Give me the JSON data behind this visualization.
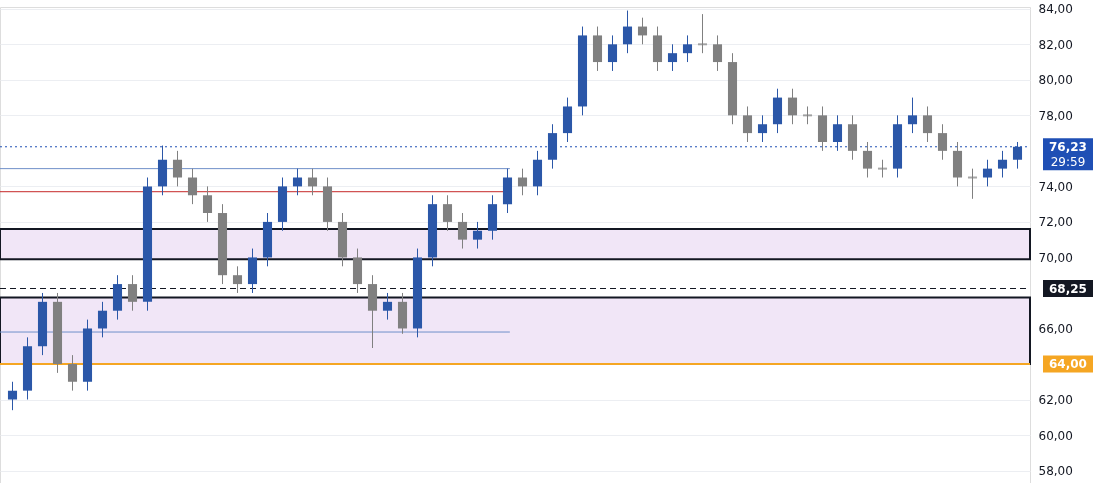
{
  "chart_data": {
    "type": "candlestick",
    "categories": [
      null,
      null,
      null,
      null,
      null,
      null,
      null,
      null,
      null,
      null,
      null,
      null,
      null,
      null,
      null,
      null,
      null,
      null,
      null,
      null,
      null,
      null,
      null,
      null,
      null,
      null,
      null,
      null,
      null,
      null,
      null,
      null,
      null,
      null,
      null,
      null,
      null,
      null,
      null,
      null,
      null,
      null,
      null,
      null,
      null,
      null,
      null,
      null,
      null,
      null,
      null,
      null,
      null,
      null,
      null,
      null,
      null,
      null,
      null,
      null,
      null,
      null,
      null,
      null,
      null,
      null,
      null,
      null
    ],
    "ohlc": [
      [
        62,
        63,
        61.4,
        62.5
      ],
      [
        62.5,
        65.5,
        62,
        65
      ],
      [
        65,
        68,
        64.5,
        67.5
      ],
      [
        67.5,
        68,
        63.5,
        64
      ],
      [
        64,
        64.5,
        62.5,
        63
      ],
      [
        63,
        66.5,
        62.5,
        66
      ],
      [
        66,
        67.5,
        65.5,
        67
      ],
      [
        67,
        69,
        66.5,
        68.5
      ],
      [
        68.5,
        69,
        67,
        67.5
      ],
      [
        67.5,
        74.5,
        67,
        74
      ],
      [
        74,
        76.3,
        73.5,
        75.5
      ],
      [
        75.5,
        76,
        74,
        74.5
      ],
      [
        74.5,
        75,
        73,
        73.5
      ],
      [
        73.5,
        74,
        72,
        72.5
      ],
      [
        72.5,
        73,
        68.5,
        69
      ],
      [
        69,
        69.5,
        68,
        68.5
      ],
      [
        68.5,
        70.5,
        68,
        70
      ],
      [
        70,
        72.5,
        69.5,
        72
      ],
      [
        72,
        74.5,
        71.5,
        74
      ],
      [
        74,
        75,
        73.5,
        74.5
      ],
      [
        74.5,
        75,
        73.5,
        74
      ],
      [
        74,
        74.5,
        71.5,
        72
      ],
      [
        72,
        72.5,
        69.5,
        70
      ],
      [
        70,
        70.5,
        68,
        68.5
      ],
      [
        68.5,
        69,
        64.9,
        67
      ],
      [
        67,
        68,
        66.5,
        67.5
      ],
      [
        67.5,
        68,
        65.7,
        66
      ],
      [
        66,
        70.5,
        65.5,
        70
      ],
      [
        70,
        73.5,
        69.5,
        73
      ],
      [
        73,
        73.5,
        71.5,
        72
      ],
      [
        72,
        72.5,
        70.5,
        71
      ],
      [
        71,
        72,
        70.5,
        71.5
      ],
      [
        71.5,
        73.5,
        71,
        73
      ],
      [
        73,
        75,
        72.5,
        74.5
      ],
      [
        74.5,
        75,
        73.5,
        74
      ],
      [
        74,
        76,
        73.5,
        75.5
      ],
      [
        75.5,
        77.5,
        75,
        77
      ],
      [
        77,
        79,
        76.5,
        78.5
      ],
      [
        78.5,
        83,
        78,
        82.5
      ],
      [
        82.5,
        83,
        80.5,
        81
      ],
      [
        81,
        82.5,
        80.5,
        82
      ],
      [
        82,
        83.9,
        81.5,
        83
      ],
      [
        83,
        83.5,
        82,
        82.5
      ],
      [
        82.5,
        83,
        80.5,
        81
      ],
      [
        81,
        82,
        80.5,
        81.5
      ],
      [
        81.5,
        82.5,
        81,
        82
      ],
      [
        82,
        83.7,
        81.5,
        82
      ],
      [
        82,
        82.5,
        80.5,
        81
      ],
      [
        81,
        81.5,
        77.5,
        78
      ],
      [
        78,
        78.5,
        76.5,
        77
      ],
      [
        77,
        78,
        76.5,
        77.5
      ],
      [
        77.5,
        79.5,
        77,
        79
      ],
      [
        79,
        79.5,
        77.5,
        78
      ],
      [
        78,
        78.5,
        77.5,
        78
      ],
      [
        78,
        78.5,
        76,
        76.5
      ],
      [
        76.5,
        78,
        76,
        77.5
      ],
      [
        77.5,
        78,
        75.5,
        76
      ],
      [
        76,
        76.5,
        74.5,
        75
      ],
      [
        75,
        75.5,
        74.5,
        75
      ],
      [
        75,
        78,
        74.5,
        77.5
      ],
      [
        77.5,
        79,
        77,
        78
      ],
      [
        78,
        78.5,
        76.5,
        77
      ],
      [
        77,
        77.5,
        75.5,
        76
      ],
      [
        76,
        76.5,
        74,
        74.5
      ],
      [
        74.5,
        75,
        73.3,
        74.5
      ],
      [
        74.5,
        75.5,
        74,
        75
      ],
      [
        75,
        76,
        74.5,
        75.5
      ],
      [
        75.5,
        76.5,
        75,
        76.23
      ]
    ],
    "colors": [
      "#2b57a8",
      "#2b57a8",
      "#2b57a8",
      "#808080",
      "#808080",
      "#2b57a8",
      "#2b57a8",
      "#2b57a8",
      "#808080",
      "#2b57a8",
      "#2b57a8",
      "#808080",
      "#808080",
      "#808080",
      "#808080",
      "#808080",
      "#2b57a8",
      "#2b57a8",
      "#2b57a8",
      "#2b57a8",
      "#808080",
      "#808080",
      "#808080",
      "#808080",
      "#808080",
      "#2b57a8",
      "#808080",
      "#2b57a8",
      "#2b57a8",
      "#808080",
      "#808080",
      "#2b57a8",
      "#2b57a8",
      "#2b57a8",
      "#808080",
      "#2b57a8",
      "#2b57a8",
      "#2b57a8",
      "#2b57a8",
      "#808080",
      "#2b57a8",
      "#2b57a8",
      "#808080",
      "#808080",
      "#2b57a8",
      "#2b57a8",
      "#808080",
      "#808080",
      "#808080",
      "#808080",
      "#2b57a8",
      "#2b57a8",
      "#808080",
      "#808080",
      "#808080",
      "#2b57a8",
      "#808080",
      "#808080",
      "#808080",
      "#2b57a8",
      "#2b57a8",
      "#808080",
      "#808080",
      "#808080",
      "#808080",
      "#2b57a8",
      "#2b57a8",
      "#2b57a8"
    ],
    "ylim": [
      57.3,
      84.1
    ],
    "yticks": [
      {
        "value": 58,
        "label": "58,00"
      },
      {
        "value": 60,
        "label": "60,00"
      },
      {
        "value": 62,
        "label": "62,00"
      },
      {
        "value": 66,
        "label": "66,00"
      },
      {
        "value": 70,
        "label": "70,00"
      },
      {
        "value": 72,
        "label": "72,00"
      },
      {
        "value": 74,
        "label": "74,00"
      },
      {
        "value": 78,
        "label": "78,00"
      },
      {
        "value": 80,
        "label": "80,00"
      },
      {
        "value": 82,
        "label": "82,00"
      },
      {
        "value": 84,
        "label": "84,00"
      }
    ],
    "grid": "y",
    "bands": [
      {
        "axis": "y",
        "from": 69.9,
        "to": 71.6,
        "label": null,
        "color": "#f1e6f7"
      },
      {
        "axis": "y",
        "from": 64,
        "to": 67.75,
        "label": null,
        "color": "#f1e6f7"
      }
    ],
    "ref_lines": [
      {
        "axis": "y",
        "value": 76.23,
        "label": "76,23",
        "color": "#1f4fb5",
        "line_style": "dotted"
      },
      {
        "axis": "y",
        "value": 68.25,
        "label": "68,25",
        "color": "#131722",
        "line_style": "dashed"
      },
      {
        "axis": "y",
        "value": 64,
        "label": "64,00",
        "color": "#f5a623",
        "line_style": "solid"
      },
      {
        "axis": "y",
        "value": 73.7,
        "label": null,
        "color": "#c62828",
        "line_style": "solid"
      },
      {
        "axis": "y",
        "value": 75,
        "label": null,
        "color": "#6f8fc9",
        "line_style": "solid"
      },
      {
        "axis": "y",
        "value": 65.8,
        "label": null,
        "color": "#6f8fc9",
        "line_style": "solid"
      }
    ],
    "annotations": [
      "29:59"
    ]
  }
}
